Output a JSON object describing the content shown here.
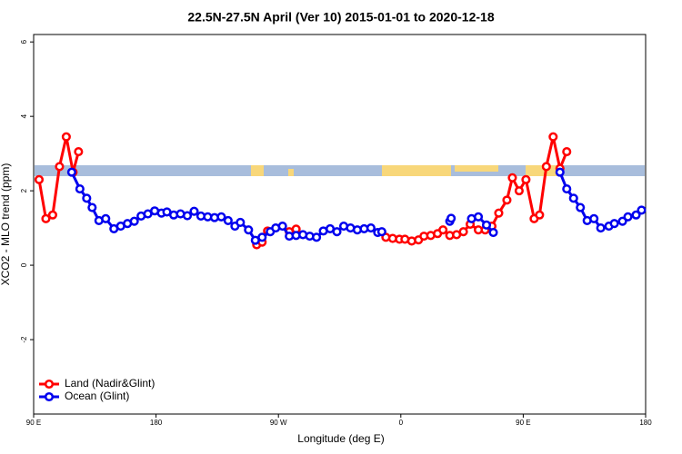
{
  "chart_data": {
    "type": "line",
    "title": "22.5N-27.5N April (Ver 10)   2015-01-01 to 2020-12-18",
    "x_label": "Longitude (deg E)",
    "y_label": "XCO2 - MLO trend (ppm)",
    "xlim": [
      90,
      540
    ],
    "xticks": [
      {
        "value": 90,
        "label": "90 E"
      },
      180,
      {
        "value": 270,
        "label": "90 W"
      },
      {
        "value": 360,
        "label": "0"
      },
      {
        "value": 450,
        "label": "90 E"
      },
      {
        "value": 540,
        "label": "180"
      }
    ],
    "ylim": [
      -4,
      6.2
    ],
    "yticks": [
      -2,
      0,
      2,
      4,
      6
    ],
    "legend": "bottom-left",
    "series": [
      {
        "name": "Land (Nadir&Glint)",
        "color": "#ff0000",
        "x": [
          94,
          99,
          104,
          109,
          114,
          119,
          123,
          null,
          254,
          258,
          262,
          null,
          278,
          283,
          null,
          349,
          354,
          359,
          363,
          368,
          373,
          377,
          382,
          387,
          391,
          396,
          401,
          406,
          411,
          417,
          422,
          427,
          432,
          438,
          442,
          447,
          452,
          458,
          462,
          467,
          472,
          477,
          482
        ],
        "values": [
          2.3,
          1.25,
          1.35,
          2.65,
          3.45,
          2.5,
          3.05,
          null,
          0.55,
          0.62,
          0.92,
          null,
          0.9,
          0.97,
          null,
          0.75,
          0.72,
          0.7,
          0.7,
          0.65,
          0.68,
          0.78,
          0.8,
          0.85,
          0.95,
          0.8,
          0.82,
          0.9,
          1.1,
          0.95,
          0.95,
          1.05,
          1.4,
          1.75,
          2.35,
          2.0,
          2.3,
          1.25,
          1.35,
          2.65,
          3.45,
          2.6,
          3.05
        ]
      },
      {
        "name": "Ocean (Glint)",
        "color": "#0000ee",
        "x": [
          118,
          124,
          129,
          133,
          138,
          143,
          149,
          154,
          159,
          164,
          169,
          174,
          179,
          184,
          188,
          193,
          198,
          203,
          208,
          213,
          218,
          223,
          228,
          233,
          238,
          242,
          248,
          253,
          258,
          264,
          268,
          273,
          278,
          283,
          288,
          293,
          298,
          303,
          308,
          313,
          318,
          323,
          328,
          333,
          338,
          343,
          346,
          null,
          396,
          397,
          null,
          412,
          417,
          423,
          428,
          null,
          477,
          482,
          487,
          492,
          497,
          502,
          507,
          513,
          517,
          523,
          527,
          533,
          537
        ],
        "values": [
          2.5,
          2.05,
          1.8,
          1.55,
          1.2,
          1.25,
          0.98,
          1.05,
          1.12,
          1.18,
          1.32,
          1.38,
          1.46,
          1.4,
          1.43,
          1.35,
          1.38,
          1.33,
          1.45,
          1.32,
          1.3,
          1.28,
          1.3,
          1.2,
          1.05,
          1.15,
          0.95,
          0.67,
          0.75,
          0.9,
          1.0,
          1.05,
          0.78,
          0.8,
          0.82,
          0.78,
          0.75,
          0.92,
          0.98,
          0.9,
          1.05,
          1.0,
          0.95,
          0.98,
          1.0,
          0.88,
          0.9,
          null,
          1.18,
          1.26,
          null,
          1.25,
          1.3,
          1.08,
          0.88,
          null,
          2.5,
          2.05,
          1.8,
          1.55,
          1.2,
          1.25,
          1.0,
          1.05,
          1.12,
          1.18,
          1.3,
          1.35,
          1.48
        ]
      }
    ]
  }
}
